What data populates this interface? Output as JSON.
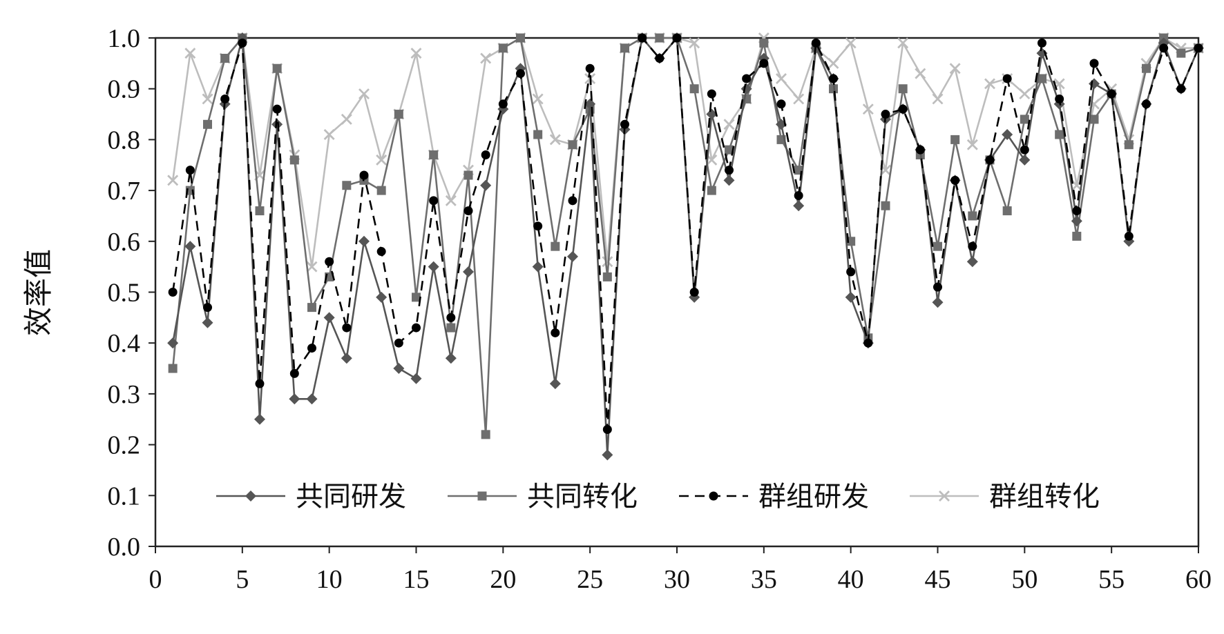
{
  "chart_data": {
    "type": "line",
    "ylabel": "效率值",
    "xlabel": "",
    "xlim": [
      0,
      60
    ],
    "ylim": [
      0,
      1
    ],
    "x_ticks": [
      0,
      5,
      10,
      15,
      20,
      25,
      30,
      35,
      40,
      45,
      50,
      55,
      60
    ],
    "y_ticks": [
      "0.0",
      "0.1",
      "0.2",
      "0.3",
      "0.4",
      "0.5",
      "0.6",
      "0.7",
      "0.8",
      "0.9",
      "1.0"
    ],
    "legend_position": "bottom-inside",
    "grid": false,
    "x": [
      1,
      2,
      3,
      4,
      5,
      6,
      7,
      8,
      9,
      10,
      11,
      12,
      13,
      14,
      15,
      16,
      17,
      18,
      19,
      20,
      21,
      22,
      23,
      24,
      25,
      26,
      27,
      28,
      29,
      30,
      31,
      32,
      33,
      34,
      35,
      36,
      37,
      38,
      39,
      40,
      41,
      42,
      43,
      44,
      45,
      46,
      47,
      48,
      49,
      50,
      51,
      52,
      53,
      54,
      55,
      56,
      57,
      58,
      59,
      60
    ],
    "series": [
      {
        "name": "共同研发",
        "color": "#555555",
        "marker": "diamond",
        "dash": "solid",
        "values": [
          0.4,
          0.59,
          0.44,
          0.87,
          1.0,
          0.25,
          0.83,
          0.29,
          0.29,
          0.45,
          0.37,
          0.6,
          0.49,
          0.35,
          0.33,
          0.55,
          0.37,
          0.54,
          0.71,
          0.86,
          0.94,
          0.55,
          0.32,
          0.57,
          0.87,
          0.18,
          0.82,
          1.0,
          0.96,
          1.0,
          0.49,
          0.85,
          0.72,
          0.9,
          0.96,
          0.83,
          0.67,
          0.98,
          0.92,
          0.49,
          0.4,
          0.84,
          0.86,
          0.78,
          0.48,
          0.72,
          0.56,
          0.76,
          0.81,
          0.76,
          0.97,
          0.87,
          0.64,
          0.91,
          0.89,
          0.6,
          0.87,
          0.99,
          0.9,
          0.98
        ]
      },
      {
        "name": "共同转化",
        "color": "#6e6e6e",
        "marker": "square",
        "dash": "solid",
        "values": [
          0.35,
          0.7,
          0.83,
          0.96,
          1.0,
          0.66,
          0.94,
          0.76,
          0.47,
          0.53,
          0.71,
          0.72,
          0.7,
          0.85,
          0.49,
          0.77,
          0.43,
          0.73,
          0.22,
          0.98,
          1.0,
          0.81,
          0.59,
          0.79,
          0.86,
          0.53,
          0.98,
          1.0,
          1.0,
          1.0,
          0.9,
          0.7,
          0.78,
          0.88,
          0.99,
          0.8,
          0.74,
          0.98,
          0.9,
          0.6,
          0.41,
          0.67,
          0.9,
          0.77,
          0.59,
          0.8,
          0.65,
          0.76,
          0.66,
          0.84,
          0.92,
          0.81,
          0.61,
          0.84,
          0.89,
          0.79,
          0.94,
          1.0,
          0.97,
          0.98
        ]
      },
      {
        "name": "群组研发",
        "color": "#000000",
        "marker": "circle",
        "dash": "dashed",
        "values": [
          0.5,
          0.74,
          0.47,
          0.88,
          0.99,
          0.32,
          0.86,
          0.34,
          0.39,
          0.56,
          0.43,
          0.73,
          0.58,
          0.4,
          0.43,
          0.68,
          0.45,
          0.66,
          0.77,
          0.87,
          0.93,
          0.63,
          0.42,
          0.68,
          0.94,
          0.23,
          0.83,
          1.0,
          0.96,
          1.0,
          0.5,
          0.89,
          0.74,
          0.92,
          0.95,
          0.87,
          0.69,
          0.99,
          0.92,
          0.54,
          0.4,
          0.85,
          0.86,
          0.78,
          0.51,
          0.72,
          0.59,
          0.76,
          0.92,
          0.78,
          0.99,
          0.88,
          0.66,
          0.95,
          0.89,
          0.61,
          0.87,
          0.98,
          0.9,
          0.98
        ]
      },
      {
        "name": "群组转化",
        "color": "#bdbdbd",
        "marker": "x",
        "dash": "solid",
        "values": [
          0.72,
          0.97,
          0.88,
          0.96,
          1.0,
          0.73,
          0.94,
          0.77,
          0.55,
          0.81,
          0.84,
          0.89,
          0.76,
          0.85,
          0.97,
          0.77,
          0.68,
          0.74,
          0.96,
          0.98,
          1.0,
          0.88,
          0.8,
          0.79,
          0.92,
          0.56,
          0.98,
          1.0,
          1.0,
          1.0,
          0.99,
          0.76,
          0.83,
          0.88,
          1.0,
          0.92,
          0.88,
          0.98,
          0.95,
          0.99,
          0.86,
          0.74,
          0.99,
          0.93,
          0.88,
          0.94,
          0.79,
          0.91,
          0.92,
          0.89,
          0.92,
          0.91,
          0.71,
          0.87,
          0.9,
          0.8,
          0.95,
          1.0,
          0.98,
          0.98
        ]
      }
    ]
  }
}
